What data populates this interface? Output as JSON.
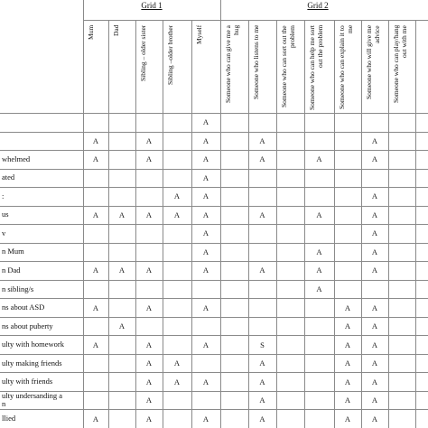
{
  "grids": [
    {
      "title": "Grid 1",
      "columns": [
        "Mum",
        "Dad",
        "Sibling – older sister",
        "Sibling –older brother",
        "Myself"
      ]
    },
    {
      "title": "Grid 2",
      "columns": [
        "Someone who can give me a hug",
        "Someone who listens to me",
        "Someone who can sort out the problem",
        "Someone who can help me sort out the problem",
        "Someone who can explain it to me",
        "Someone who will give me advice",
        "Someone who can play/hang out with me"
      ]
    }
  ],
  "rows": [
    {
      "label": null,
      "cells": [
        null,
        null,
        null,
        null,
        "A",
        null,
        null,
        null,
        null,
        null,
        null,
        null
      ]
    },
    {
      "label": null,
      "cells": [
        "A",
        null,
        "A",
        null,
        "A",
        null,
        "A",
        null,
        null,
        null,
        "A",
        null
      ]
    },
    {
      "label": "whelmed",
      "cells": [
        "A",
        null,
        "A",
        null,
        "A",
        null,
        "A",
        null,
        "A",
        null,
        "A",
        null
      ]
    },
    {
      "label": "ated",
      "cells": [
        null,
        null,
        null,
        null,
        "A",
        null,
        null,
        null,
        null,
        null,
        null,
        null
      ]
    },
    {
      "label": ":",
      "cells": [
        null,
        null,
        null,
        "A",
        "A",
        null,
        null,
        null,
        null,
        null,
        "A",
        null
      ]
    },
    {
      "label": "us",
      "cells": [
        "A",
        "A",
        "A",
        "A",
        "A",
        null,
        "A",
        null,
        "A",
        null,
        "A",
        null
      ]
    },
    {
      "label": "v",
      "cells": [
        null,
        null,
        null,
        null,
        "A",
        null,
        null,
        null,
        null,
        null,
        "A",
        null
      ]
    },
    {
      "label": "n Mum",
      "cells": [
        null,
        null,
        null,
        null,
        "A",
        null,
        null,
        null,
        "A",
        null,
        "A",
        null
      ]
    },
    {
      "label": "n Dad",
      "cells": [
        "A",
        "A",
        "A",
        null,
        "A",
        null,
        "A",
        null,
        "A",
        null,
        "A",
        null
      ]
    },
    {
      "label": "n sibling/s",
      "cells": [
        null,
        null,
        null,
        null,
        null,
        null,
        null,
        null,
        "A",
        null,
        null,
        null
      ]
    },
    {
      "label": "ns about ASD",
      "cells": [
        "A",
        null,
        "A",
        null,
        "A",
        null,
        null,
        null,
        null,
        "A",
        "A",
        null
      ]
    },
    {
      "label": "ns about puberty",
      "cells": [
        null,
        "A",
        null,
        null,
        null,
        null,
        null,
        null,
        null,
        "A",
        "A",
        null
      ]
    },
    {
      "label": "ulty with homework",
      "cells": [
        "A",
        null,
        "A",
        null,
        "A",
        null,
        "S",
        null,
        null,
        "A",
        "A",
        null
      ]
    },
    {
      "label": "ulty making friends",
      "cells": [
        null,
        null,
        "A",
        "A",
        null,
        null,
        "A",
        null,
        null,
        "A",
        "A",
        null
      ]
    },
    {
      "label": "ulty with friends",
      "cells": [
        null,
        null,
        "A",
        "A",
        "A",
        null,
        "A",
        null,
        null,
        "A",
        "A",
        null
      ]
    },
    {
      "label": "ulty undersanding a\nn",
      "cells": [
        null,
        null,
        "A",
        null,
        null,
        null,
        "A",
        null,
        null,
        "A",
        "A",
        null
      ]
    },
    {
      "label": "llied",
      "cells": [
        "A",
        null,
        "A",
        null,
        "A",
        null,
        "A",
        null,
        null,
        "A",
        "A",
        null
      ]
    }
  ]
}
